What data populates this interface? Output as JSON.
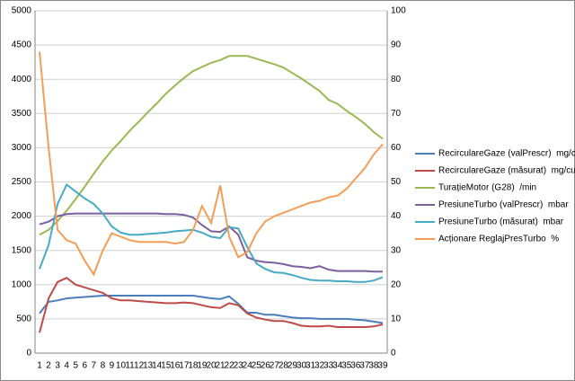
{
  "chart_data": {
    "type": "line",
    "categories": [
      "1",
      "2",
      "3",
      "4",
      "5",
      "6",
      "7",
      "8",
      "9",
      "10",
      "11",
      "12",
      "13",
      "14",
      "15",
      "16",
      "17",
      "18",
      "19",
      "20",
      "21",
      "22",
      "23",
      "24",
      "25",
      "26",
      "27",
      "28",
      "29",
      "30",
      "31",
      "32",
      "33",
      "34",
      "35",
      "36",
      "37",
      "38",
      "39"
    ],
    "ylim": [
      0,
      5000
    ],
    "yticks": [
      0,
      500,
      1000,
      1500,
      2000,
      2500,
      3000,
      3500,
      4000,
      4500,
      5000
    ],
    "y2lim": [
      0,
      100
    ],
    "y2ticks": [
      0,
      10,
      20,
      30,
      40,
      50,
      60,
      70,
      80,
      90,
      100
    ],
    "grid": true,
    "legend": "right",
    "series": [
      {
        "name": "RecirculareGaze (valPrescr)  mg/cursă",
        "color": "#4a7ebb",
        "values": [
          580,
          750,
          770,
          800,
          810,
          820,
          830,
          840,
          840,
          840,
          840,
          840,
          840,
          840,
          840,
          840,
          840,
          840,
          820,
          800,
          790,
          830,
          720,
          590,
          590,
          560,
          560,
          540,
          520,
          510,
          510,
          500,
          500,
          500,
          500,
          490,
          480,
          460,
          440
        ]
      },
      {
        "name": "RecirculareGaze (măsurat)  mg/cursă",
        "color": "#be4b48",
        "values": [
          300,
          800,
          1040,
          1100,
          1000,
          960,
          920,
          880,
          800,
          770,
          770,
          760,
          750,
          740,
          730,
          730,
          740,
          730,
          700,
          670,
          660,
          730,
          700,
          580,
          520,
          490,
          470,
          470,
          440,
          400,
          390,
          390,
          400,
          380,
          380,
          380,
          380,
          390,
          420
        ]
      },
      {
        "name": "TurațieMotor (G28)  /min",
        "color": "#98b954",
        "values": [
          1730,
          1800,
          1930,
          2080,
          2250,
          2430,
          2620,
          2800,
          2960,
          3100,
          3250,
          3380,
          3520,
          3650,
          3790,
          3910,
          4020,
          4120,
          4180,
          4240,
          4280,
          4340,
          4340,
          4340,
          4300,
          4260,
          4220,
          4170,
          4090,
          4010,
          3920,
          3830,
          3700,
          3640,
          3540,
          3450,
          3350,
          3230,
          3130
        ]
      },
      {
        "name": "PresiuneTurbo (valPrescr)  mbar",
        "color": "#7d5fa0",
        "values": [
          1880,
          1920,
          2000,
          2030,
          2040,
          2040,
          2040,
          2040,
          2040,
          2040,
          2040,
          2040,
          2040,
          2040,
          2030,
          2030,
          2020,
          1980,
          1870,
          1780,
          1770,
          1850,
          1730,
          1400,
          1350,
          1330,
          1320,
          1300,
          1270,
          1260,
          1240,
          1270,
          1220,
          1200,
          1200,
          1200,
          1200,
          1190,
          1190
        ]
      },
      {
        "name": "PresiuneTurbo (măsurat)  mbar",
        "color": "#46aac5",
        "values": [
          1230,
          1580,
          2180,
          2460,
          2360,
          2260,
          2180,
          2040,
          1850,
          1760,
          1730,
          1730,
          1740,
          1750,
          1760,
          1780,
          1790,
          1800,
          1760,
          1700,
          1680,
          1840,
          1820,
          1550,
          1310,
          1230,
          1180,
          1170,
          1140,
          1100,
          1070,
          1060,
          1060,
          1050,
          1050,
          1040,
          1040,
          1060,
          1110
        ]
      },
      {
        "name": "Acționare ReglajPresTurbo  %",
        "color": "#f59d56",
        "axis": "y2",
        "values": [
          88,
          60,
          36,
          33,
          32,
          27,
          23,
          30,
          35,
          34,
          33,
          32.5,
          32.5,
          32.5,
          32.5,
          32,
          32.5,
          36,
          43,
          38,
          49,
          34,
          28,
          29.5,
          35,
          38.5,
          40,
          41,
          42,
          43,
          44,
          44.5,
          45.5,
          46,
          48,
          51,
          54,
          58,
          61
        ]
      }
    ]
  }
}
